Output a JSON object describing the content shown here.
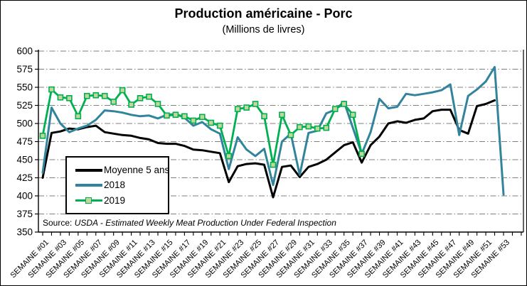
{
  "header": {
    "title": "Production américaine - Porc",
    "subtitle": "(Millions de livres)"
  },
  "source_note": {
    "prefix": "Source: ",
    "text": "USDA - Estimated Weekly Meat Production Under Federal Inspection"
  },
  "chart_data": {
    "type": "line",
    "title": "Production américaine - Porc",
    "subtitle": "(Millions de livres)",
    "grid": "horizontal dash-dot, gray",
    "legend_position": "inside top-left",
    "colors": {
      "grid": "#7f7f7f",
      "axis": "#000000",
      "background": "#ffffff"
    },
    "y_axis": {
      "min": 350,
      "max": 600,
      "step": 25,
      "tick_labels": [
        "600",
        "575",
        "550",
        "525",
        "500",
        "475",
        "450",
        "425",
        "400",
        "375",
        "350"
      ]
    },
    "x_axis": {
      "categories_count": 53,
      "label_every": 2,
      "labels": [
        "SEMAINE #01",
        "SEMAINE #03",
        "SEMAINE #05",
        "SEMAINE #07",
        "SEMAINE #09",
        "SEMAINE #11",
        "SEMAINE #13",
        "SEMAINE #15",
        "SEMAINE #17",
        "SEMAINE #19",
        "SEMAINE #21",
        "SEMAINE #23",
        "SEMAINE #25",
        "SEMAINE #27",
        "SEMAINE #29",
        "SEMAINE #31",
        "SEMAINE #33",
        "SEMAINE #35",
        "SEMAINE #37",
        "SEMAINE #39",
        "SEMAINE #41",
        "SEMAINE #43",
        "SEMAINE #45",
        "SEMAINE #47",
        "SEMAINE #49",
        "SEMAINE #51",
        "SEMAINE #53"
      ]
    },
    "series": [
      {
        "name": "Moyenne 5 ans",
        "color": "#000000",
        "line_width": 3.0,
        "marker": "none",
        "start_week": 1,
        "values": [
          425,
          487,
          489,
          493,
          492,
          495,
          497,
          488,
          486,
          484,
          483,
          480,
          478,
          473,
          472,
          472,
          469,
          464,
          463,
          461,
          459,
          419,
          441,
          444,
          445,
          443,
          398,
          440,
          442,
          426,
          440,
          444,
          450,
          460,
          470,
          474,
          446,
          470,
          482,
          500,
          503,
          501,
          505,
          507,
          517,
          519,
          519,
          491,
          486,
          524,
          527,
          532
        ]
      },
      {
        "name": "2018",
        "color": "#31849b",
        "line_width": 3.0,
        "marker": "none",
        "start_week": 1,
        "values": [
          432,
          522,
          500,
          488,
          493,
          497,
          505,
          518,
          517,
          515,
          512,
          510,
          511,
          507,
          512,
          513,
          508,
          497,
          502,
          492,
          486,
          437,
          481,
          464,
          455,
          465,
          415,
          475,
          486,
          429,
          487,
          490,
          514,
          519,
          530,
          494,
          458,
          488,
          534,
          521,
          523,
          541,
          539,
          541,
          543,
          546,
          554,
          484,
          538,
          547,
          558,
          578,
          402
        ]
      },
      {
        "name": "2019",
        "color": "#00b050",
        "line_width": 2.8,
        "marker": "square",
        "marker_fill": "#c3d69b",
        "start_week": 1,
        "values": [
          483,
          547,
          536,
          535,
          510,
          538,
          539,
          538,
          530,
          546,
          526,
          535,
          537,
          527,
          511,
          512,
          510,
          504,
          509,
          501,
          497,
          455,
          520,
          522,
          527,
          510,
          443,
          512,
          484,
          495,
          496,
          493,
          494,
          520,
          527,
          512,
          458
        ]
      }
    ]
  }
}
